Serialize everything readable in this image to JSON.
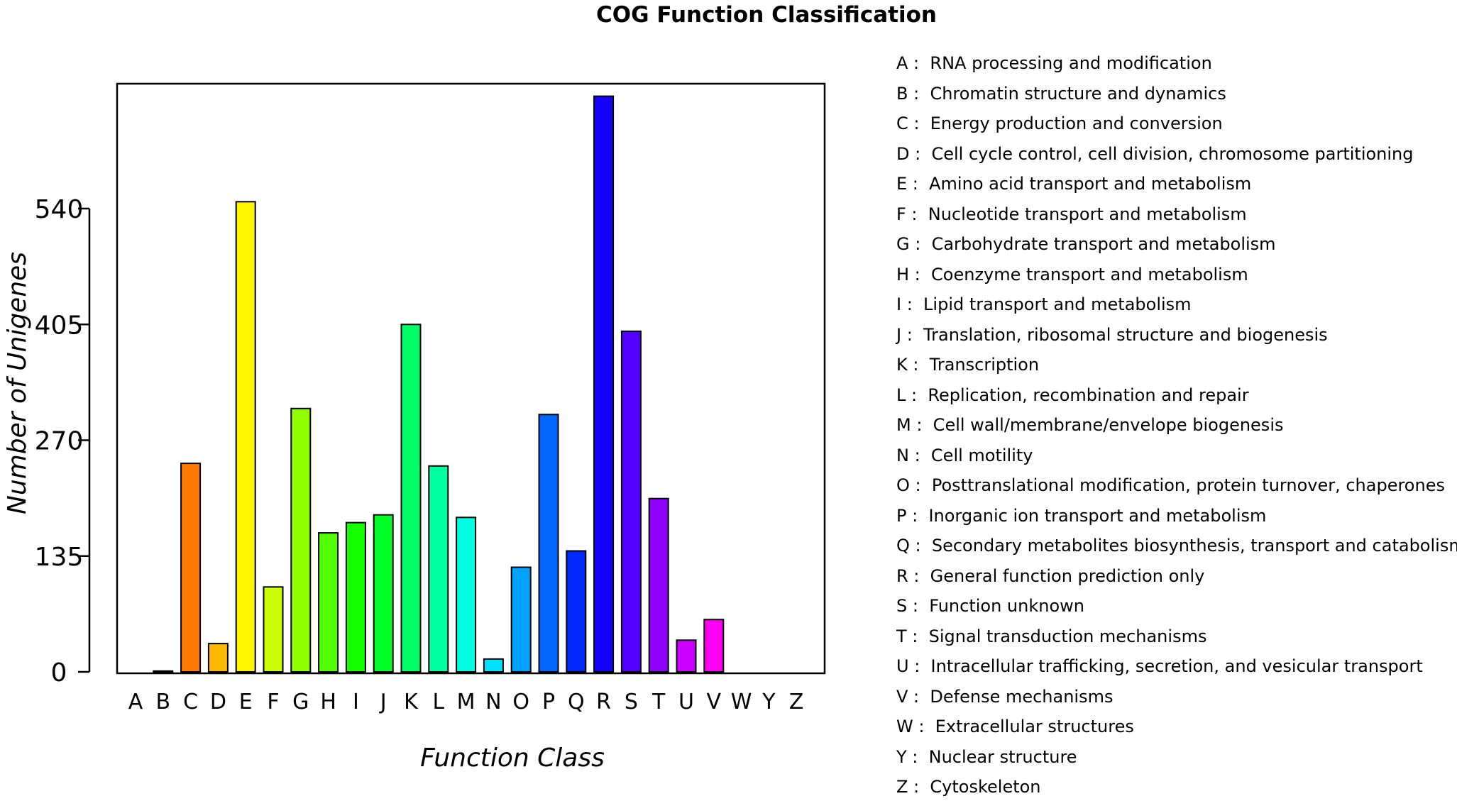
{
  "chart_data": {
    "type": "bar",
    "title": "COG Function Classification",
    "xlabel": "Function Class",
    "ylabel": "Number of Unigenes",
    "ylim": [
      0,
      680
    ],
    "yticks": [
      0,
      135,
      270,
      405,
      540
    ],
    "yticks_labels": [
      "0",
      "135",
      "270",
      "405",
      "540"
    ],
    "grid": false,
    "categories": [
      "A",
      "B",
      "C",
      "D",
      "E",
      "F",
      "G",
      "H",
      "I",
      "J",
      "K",
      "L",
      "M",
      "N",
      "O",
      "P",
      "Q",
      "R",
      "S",
      "T",
      "U",
      "V",
      "W",
      "Y",
      "Z"
    ],
    "values": [
      0,
      1,
      243,
      33,
      548,
      99,
      307,
      162,
      174,
      183,
      405,
      240,
      180,
      15,
      122,
      300,
      141,
      671,
      397,
      202,
      37,
      61,
      0,
      0,
      0
    ],
    "colors": [
      "#ff0000",
      "#ff3d00",
      "#ff7a00",
      "#ffb800",
      "#fff500",
      "#ccff00",
      "#8fff00",
      "#52ff00",
      "#14ff00",
      "#00ff29",
      "#00ff66",
      "#00ffa3",
      "#00ffe0",
      "#00e0ff",
      "#00a3ff",
      "#0066ff",
      "#0029ff",
      "#1400ff",
      "#5200ff",
      "#8f00ff",
      "#cc00ff",
      "#ff00f5",
      "#ff00b8",
      "#ff007a",
      "#ff003d"
    ],
    "legend": [
      {
        "key": "A",
        "sep": " :  ",
        "label": "RNA processing and modification"
      },
      {
        "key": "B",
        "sep": " :  ",
        "label": "Chromatin structure and dynamics"
      },
      {
        "key": "C",
        "sep": " :  ",
        "label": "Energy production and conversion"
      },
      {
        "key": "D",
        "sep": " :  ",
        "label": "Cell cycle control, cell division, chromosome partitioning"
      },
      {
        "key": "E",
        "sep": " :  ",
        "label": "Amino acid transport and metabolism"
      },
      {
        "key": "F",
        "sep": " :  ",
        "label": "Nucleotide transport and metabolism"
      },
      {
        "key": "G",
        "sep": " :  ",
        "label": "Carbohydrate transport and metabolism"
      },
      {
        "key": "H",
        "sep": " :  ",
        "label": "Coenzyme transport and metabolism"
      },
      {
        "key": "I",
        "sep": " :  ",
        "label": "Lipid transport and metabolism"
      },
      {
        "key": "J",
        "sep": " :  ",
        "label": "Translation, ribosomal structure and biogenesis"
      },
      {
        "key": "K",
        "sep": " :  ",
        "label": "Transcription"
      },
      {
        "key": "L",
        "sep": " :  ",
        "label": "Replication, recombination and repair"
      },
      {
        "key": "M",
        "sep": " :  ",
        "label": "Cell wall/membrane/envelope biogenesis"
      },
      {
        "key": "N",
        "sep": " :  ",
        "label": "Cell motility"
      },
      {
        "key": "O",
        "sep": " :  ",
        "label": "Posttranslational modification, protein turnover, chaperones"
      },
      {
        "key": "P",
        "sep": " :  ",
        "label": "Inorganic ion transport and metabolism"
      },
      {
        "key": "Q",
        "sep": " :  ",
        "label": "Secondary metabolites biosynthesis, transport and catabolism"
      },
      {
        "key": "R",
        "sep": " :  ",
        "label": "General function prediction only"
      },
      {
        "key": "S",
        "sep": " :  ",
        "label": "Function unknown"
      },
      {
        "key": "T",
        "sep": " :  ",
        "label": "Signal transduction mechanisms"
      },
      {
        "key": "U",
        "sep": " :  ",
        "label": "Intracellular trafficking, secretion, and vesicular transport"
      },
      {
        "key": "V",
        "sep": " :  ",
        "label": "Defense mechanisms"
      },
      {
        "key": "W",
        "sep": " :  ",
        "label": "Extracellular structures"
      },
      {
        "key": "Y",
        "sep": " :  ",
        "label": "Nuclear structure"
      },
      {
        "key": "Z",
        "sep": " :  ",
        "label": "Cytoskeleton"
      }
    ]
  }
}
